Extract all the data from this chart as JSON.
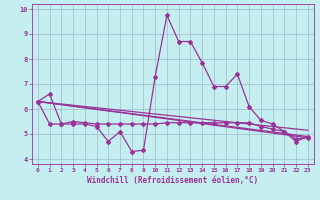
{
  "xlabel": "Windchill (Refroidissement éolien,°C)",
  "xlim": [
    -0.5,
    23.5
  ],
  "ylim": [
    3.8,
    10.2
  ],
  "yticks": [
    4,
    5,
    6,
    7,
    8,
    9,
    10
  ],
  "xticks": [
    0,
    1,
    2,
    3,
    4,
    5,
    6,
    7,
    8,
    9,
    10,
    11,
    12,
    13,
    14,
    15,
    16,
    17,
    18,
    19,
    20,
    21,
    22,
    23
  ],
  "background_color": "#c5eef0",
  "grid_color": "#a0b8cc",
  "line_color": "#993399",
  "series1_x": [
    0,
    1,
    2,
    3,
    4,
    5,
    6,
    7,
    8,
    9,
    10,
    11,
    12,
    13,
    14,
    15,
    16,
    17,
    18,
    19,
    20,
    21,
    22,
    23
  ],
  "series1_y": [
    6.3,
    6.6,
    5.4,
    5.4,
    5.4,
    5.3,
    4.7,
    5.1,
    4.3,
    4.35,
    7.3,
    9.75,
    8.7,
    8.7,
    7.85,
    6.9,
    6.9,
    7.4,
    6.1,
    5.55,
    5.4,
    5.1,
    4.7,
    4.9
  ],
  "series2_x": [
    0,
    1,
    2,
    3,
    4,
    5,
    6,
    7,
    8,
    9,
    10,
    11,
    12,
    13,
    14,
    15,
    16,
    17,
    18,
    19,
    20,
    21,
    22,
    23
  ],
  "series2_y": [
    6.3,
    5.4,
    5.4,
    5.5,
    5.45,
    5.4,
    5.4,
    5.4,
    5.4,
    5.4,
    5.4,
    5.45,
    5.45,
    5.45,
    5.45,
    5.45,
    5.45,
    5.45,
    5.45,
    5.3,
    5.2,
    5.1,
    4.8,
    4.85
  ],
  "trend1_x": [
    0,
    23
  ],
  "trend1_y": [
    6.3,
    4.9
  ],
  "trend2_x": [
    0,
    23
  ],
  "trend2_y": [
    6.3,
    5.15
  ],
  "trend3_x": [
    0,
    23
  ],
  "trend3_y": [
    6.3,
    4.85
  ]
}
